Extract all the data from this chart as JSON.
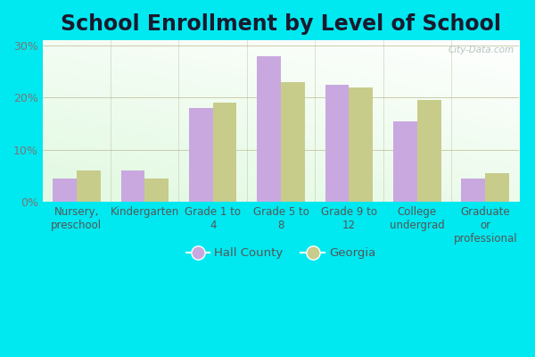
{
  "title": "School Enrollment by Level of School",
  "categories": [
    "Nursery,\npreschool",
    "Kindergarten",
    "Grade 1 to\n4",
    "Grade 5 to\n8",
    "Grade 9 to\n12",
    "College\nundergrad",
    "Graduate\nor\nprofessional"
  ],
  "hall_county": [
    4.5,
    6.0,
    18.0,
    28.0,
    22.5,
    15.5,
    4.5
  ],
  "georgia": [
    6.0,
    4.5,
    19.0,
    23.0,
    22.0,
    19.5,
    5.5
  ],
  "hall_color": "#c9a8e0",
  "georgia_color": "#c8cc8a",
  "hall_label": "Hall County",
  "georgia_label": "Georgia",
  "ylim": [
    0,
    31
  ],
  "yticks": [
    0,
    10,
    20,
    30
  ],
  "ytick_labels": [
    "0%",
    "10%",
    "20%",
    "30%"
  ],
  "background_outer": "#00e8f0",
  "grid_color": "#ccccaa",
  "title_fontsize": 17,
  "label_fontsize": 8.5,
  "tick_fontsize": 9,
  "watermark": "City-Data.com"
}
